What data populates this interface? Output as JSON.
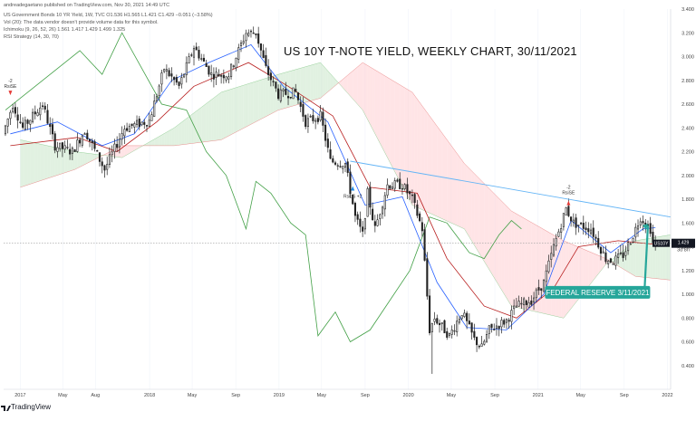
{
  "header": {
    "publisher": "andreadegaetano published on TradingView.com, Nov 30, 2021 14:49 UTC",
    "symbol_line": "US Government Bonds 10 YR Yield, 1W, TVC  O1.536  H1.565  L1.421  C1.429  −0.051 (−3.58%)",
    "vol_line": "Vol (20): The data vendor doesn't provide volume data for this symbol.",
    "ichimoku_line": "Ichimoku (9, 26, 52, 26)  1.561  1.417  1.429  1.499  1.325",
    "rsi_line": "RSI Strategy (14, 30, 70)"
  },
  "title": "US 10Y T-NOTE YIELD, WEEKLY CHART, 30/11/2021",
  "annotations": {
    "fed_label": "FEDERAL RESERVE 3/11/2021",
    "rise_left_num": "-2",
    "rise_left": "RsiSE",
    "rise_right_num": "-2",
    "rise_right": "RsiSE",
    "mid_marker": "RsiLS +2",
    "symbol_tag": "US10Y",
    "price_tag": "1.429",
    "countdown_tag": "3d 8h"
  },
  "footer": {
    "brand": "TradingView"
  },
  "colors": {
    "up_candle": "#222222",
    "down_candle": "#222222",
    "tenkan": "#2962ff",
    "kijun": "#b71c1c",
    "chikou": "#43a047",
    "cloud_bull": "#c8e6c9",
    "cloud_bear": "#ffcdd2",
    "trendline": "#64b5f6",
    "label_bg": "#26a69a"
  },
  "chart_data": {
    "type": "candlestick",
    "ylim": [
      0.2,
      3.4
    ],
    "yticks": [
      0.4,
      0.6,
      0.8,
      1.0,
      1.2,
      1.4,
      1.6,
      1.8,
      2.0,
      2.2,
      2.4,
      2.6,
      2.8,
      3.0,
      3.2,
      3.4
    ],
    "xlim": [
      "2016-11-15",
      "2022-01-10"
    ],
    "xticks": [
      {
        "label": "2017",
        "date": "2017-01-01"
      },
      {
        "label": "May",
        "date": "2017-05-01"
      },
      {
        "label": "Aug",
        "date": "2017-08-01"
      },
      {
        "label": "2018",
        "date": "2018-01-01"
      },
      {
        "label": "May",
        "date": "2018-05-01"
      },
      {
        "label": "Sep",
        "date": "2018-09-01"
      },
      {
        "label": "2019",
        "date": "2019-01-01"
      },
      {
        "label": "May",
        "date": "2019-05-01"
      },
      {
        "label": "Sep",
        "date": "2019-09-01"
      },
      {
        "label": "2020",
        "date": "2020-01-01"
      },
      {
        "label": "May",
        "date": "2020-05-01"
      },
      {
        "label": "Sep",
        "date": "2020-09-01"
      },
      {
        "label": "2021",
        "date": "2021-01-01"
      },
      {
        "label": "May",
        "date": "2021-05-01"
      },
      {
        "label": "Sep",
        "date": "2021-09-01"
      },
      {
        "label": "2022",
        "date": "2022-01-01"
      }
    ],
    "price_anchors": [
      [
        "2016-11-20",
        2.35
      ],
      [
        "2016-12-18",
        2.6
      ],
      [
        "2017-01-15",
        2.4
      ],
      [
        "2017-03-12",
        2.6
      ],
      [
        "2017-04-16",
        2.25
      ],
      [
        "2017-06-04",
        2.2
      ],
      [
        "2017-07-09",
        2.38
      ],
      [
        "2017-09-03",
        2.05
      ],
      [
        "2017-10-29",
        2.4
      ],
      [
        "2018-01-07",
        2.46
      ],
      [
        "2018-02-18",
        2.9
      ],
      [
        "2018-04-01",
        2.75
      ],
      [
        "2018-05-13",
        3.08
      ],
      [
        "2018-07-01",
        2.85
      ],
      [
        "2018-08-19",
        2.85
      ],
      [
        "2018-10-07",
        3.2
      ],
      [
        "2018-11-04",
        3.2
      ],
      [
        "2018-12-02",
        2.9
      ],
      [
        "2019-01-06",
        2.68
      ],
      [
        "2019-02-24",
        2.7
      ],
      [
        "2019-03-24",
        2.45
      ],
      [
        "2019-05-05",
        2.5
      ],
      [
        "2019-06-02",
        2.12
      ],
      [
        "2019-07-14",
        2.1
      ],
      [
        "2019-08-11",
        1.65
      ],
      [
        "2019-09-01",
        1.5
      ],
      [
        "2019-09-15",
        1.85
      ],
      [
        "2019-10-06",
        1.55
      ],
      [
        "2019-11-10",
        1.92
      ],
      [
        "2019-12-22",
        1.92
      ],
      [
        "2020-01-19",
        1.8
      ],
      [
        "2020-02-16",
        1.55
      ],
      [
        "2020-03-08",
        0.7
      ],
      [
        "2020-03-22",
        0.8
      ],
      [
        "2020-05-03",
        0.65
      ],
      [
        "2020-06-07",
        0.85
      ],
      [
        "2020-07-12",
        0.62
      ],
      [
        "2020-08-02",
        0.55
      ],
      [
        "2020-08-23",
        0.7
      ],
      [
        "2020-10-11",
        0.78
      ],
      [
        "2020-11-08",
        0.9
      ],
      [
        "2020-12-20",
        0.95
      ],
      [
        "2021-01-24",
        1.1
      ],
      [
        "2021-02-21",
        1.4
      ],
      [
        "2021-03-28",
        1.72
      ],
      [
        "2021-04-18",
        1.6
      ],
      [
        "2021-06-06",
        1.55
      ],
      [
        "2021-07-18",
        1.3
      ],
      [
        "2021-08-08",
        1.28
      ],
      [
        "2021-09-05",
        1.33
      ],
      [
        "2021-10-03",
        1.5
      ],
      [
        "2021-10-24",
        1.65
      ],
      [
        "2021-11-21",
        1.55
      ],
      [
        "2021-11-28",
        1.43
      ]
    ],
    "price_extremes": {
      "high": {
        "date": "2018-11-04",
        "value": 3.25
      },
      "low": {
        "date": "2020-03-08",
        "value": 0.33
      }
    },
    "last_close": 1.429,
    "trendline": {
      "start": [
        "2019-07-21",
        2.12
      ],
      "end": [
        "2022-01-10",
        1.65
      ]
    },
    "chikou_anchors": [
      [
        "2016-11-20",
        2.55
      ],
      [
        "2017-03-05",
        2.8
      ],
      [
        "2017-06-18",
        3.05
      ],
      [
        "2017-08-20",
        2.85
      ],
      [
        "2017-10-15",
        3.2
      ],
      [
        "2017-12-10",
        2.9
      ],
      [
        "2018-02-04",
        2.6
      ],
      [
        "2018-04-15",
        2.55
      ],
      [
        "2018-06-10",
        2.2
      ],
      [
        "2018-08-05",
        2.0
      ],
      [
        "2018-09-30",
        1.55
      ],
      [
        "2018-10-28",
        1.95
      ],
      [
        "2018-12-09",
        1.85
      ],
      [
        "2019-02-03",
        1.6
      ],
      [
        "2019-03-17",
        1.5
      ],
      [
        "2019-04-21",
        0.65
      ],
      [
        "2019-06-09",
        0.85
      ],
      [
        "2019-07-21",
        0.6
      ],
      [
        "2019-09-15",
        0.7
      ],
      [
        "2019-11-10",
        0.95
      ],
      [
        "2020-01-05",
        1.2
      ],
      [
        "2020-03-01",
        1.65
      ],
      [
        "2020-04-19",
        1.6
      ],
      [
        "2020-06-21",
        1.35
      ],
      [
        "2020-08-02",
        1.3
      ],
      [
        "2020-09-13",
        1.5
      ],
      [
        "2020-10-18",
        1.62
      ],
      [
        "2020-11-15",
        1.55
      ]
    ],
    "tenkan_anchors": [
      [
        "2016-12-04",
        2.35
      ],
      [
        "2017-04-16",
        2.45
      ],
      [
        "2017-08-20",
        2.25
      ],
      [
        "2017-11-19",
        2.35
      ],
      [
        "2018-03-04",
        2.8
      ],
      [
        "2018-06-17",
        2.95
      ],
      [
        "2018-10-14",
        3.1
      ],
      [
        "2019-01-13",
        2.75
      ],
      [
        "2019-05-19",
        2.45
      ],
      [
        "2019-09-01",
        1.75
      ],
      [
        "2019-12-15",
        1.82
      ],
      [
        "2020-03-22",
        1.1
      ],
      [
        "2020-06-14",
        0.72
      ],
      [
        "2020-10-04",
        0.7
      ],
      [
        "2021-01-17",
        1.0
      ],
      [
        "2021-04-04",
        1.62
      ],
      [
        "2021-07-25",
        1.35
      ],
      [
        "2021-10-24",
        1.55
      ],
      [
        "2021-11-28",
        1.56
      ]
    ],
    "kijun_anchors": [
      [
        "2016-12-04",
        2.25
      ],
      [
        "2017-06-11",
        2.32
      ],
      [
        "2017-10-01",
        2.2
      ],
      [
        "2018-01-21",
        2.45
      ],
      [
        "2018-05-06",
        2.75
      ],
      [
        "2018-10-07",
        2.95
      ],
      [
        "2019-01-27",
        2.75
      ],
      [
        "2019-06-02",
        2.5
      ],
      [
        "2019-09-15",
        1.9
      ],
      [
        "2020-01-26",
        1.85
      ],
      [
        "2020-04-19",
        1.3
      ],
      [
        "2020-08-02",
        0.9
      ],
      [
        "2020-11-01",
        0.8
      ],
      [
        "2021-02-14",
        1.05
      ],
      [
        "2021-04-25",
        1.4
      ],
      [
        "2021-08-15",
        1.45
      ],
      [
        "2021-11-28",
        1.42
      ]
    ],
    "cloud_a_anchors": [
      [
        "2017-01-01",
        2.3
      ],
      [
        "2017-06-04",
        2.2
      ],
      [
        "2017-10-15",
        2.15
      ],
      [
        "2018-03-11",
        2.4
      ],
      [
        "2018-07-22",
        2.7
      ],
      [
        "2018-12-30",
        2.85
      ],
      [
        "2019-04-28",
        2.95
      ],
      [
        "2019-08-25",
        2.55
      ],
      [
        "2020-01-12",
        1.75
      ],
      [
        "2020-06-07",
        1.55
      ],
      [
        "2020-10-18",
        0.9
      ],
      [
        "2021-03-14",
        0.8
      ],
      [
        "2021-07-11",
        1.25
      ],
      [
        "2021-10-03",
        1.45
      ],
      [
        "2022-01-09",
        1.5
      ]
    ],
    "cloud_b_anchors": [
      [
        "2017-01-01",
        1.9
      ],
      [
        "2017-06-04",
        2.05
      ],
      [
        "2017-10-15",
        2.25
      ],
      [
        "2018-03-11",
        2.25
      ],
      [
        "2018-07-22",
        2.3
      ],
      [
        "2018-12-30",
        2.55
      ],
      [
        "2019-04-28",
        2.65
      ],
      [
        "2019-08-25",
        2.95
      ],
      [
        "2020-01-12",
        2.7
      ],
      [
        "2020-06-07",
        2.1
      ],
      [
        "2020-10-18",
        1.7
      ],
      [
        "2021-03-14",
        1.45
      ],
      [
        "2021-07-11",
        1.3
      ],
      [
        "2021-10-03",
        1.15
      ],
      [
        "2022-01-09",
        1.12
      ]
    ],
    "annotation_points": {
      "rise_left": [
        "2016-12-04",
        2.66
      ],
      "rise_right": [
        "2021-03-28",
        1.78
      ],
      "mid_marker": [
        "2019-07-28",
        1.72
      ],
      "fed_label": [
        "2021-11-03",
        1.1
      ]
    }
  }
}
